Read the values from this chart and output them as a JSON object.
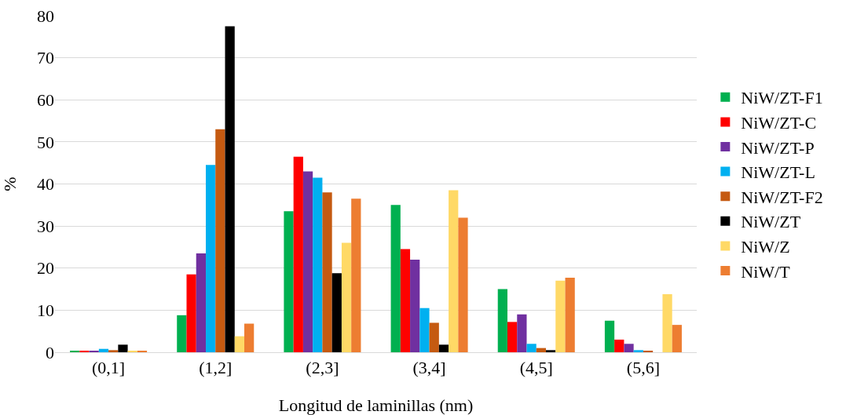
{
  "chart_data": {
    "type": "bar",
    "xlabel": "Longitud de laminillas (nm)",
    "ylabel": "%",
    "categories": [
      "(0,1]",
      "(1,2]",
      "(2,3]",
      "(3,4]",
      "(4,5]",
      "(5,6]"
    ],
    "series": [
      {
        "name": "NiW/ZT-F1",
        "color": "#00b050",
        "values": [
          0.2,
          8.8,
          33.5,
          35,
          15,
          7.5
        ]
      },
      {
        "name": "NiW/ZT-C",
        "color": "#ff0000",
        "values": [
          0.2,
          18.5,
          46.5,
          24.5,
          7.2,
          3
        ]
      },
      {
        "name": "NiW/ZT-P",
        "color": "#7030a0",
        "values": [
          0.2,
          23.5,
          43,
          22,
          9,
          2
        ]
      },
      {
        "name": "NiW/ZT-L",
        "color": "#00b0f0",
        "values": [
          0.8,
          44.5,
          41.5,
          10.5,
          2,
          0.5
        ]
      },
      {
        "name": "NiW/ZT-F2",
        "color": "#c55a11",
        "values": [
          0.5,
          53,
          38,
          7,
          1,
          0.3
        ]
      },
      {
        "name": "NiW/ZT",
        "color": "#000000",
        "values": [
          1.8,
          77.5,
          18.8,
          1.8,
          0.5,
          0
        ]
      },
      {
        "name": "NiW/Z",
        "color": "#ffd966",
        "values": [
          0.3,
          3.8,
          26,
          38.5,
          17,
          13.8
        ]
      },
      {
        "name": "NiW/T",
        "color": "#ed7d31",
        "values": [
          0.3,
          6.8,
          36.5,
          32,
          17.7,
          6.5
        ]
      }
    ],
    "ylim": [
      0,
      80
    ],
    "yticks": [
      0,
      10,
      20,
      30,
      40,
      50,
      60,
      70,
      80
    ],
    "grid": "y",
    "legend": "right"
  }
}
